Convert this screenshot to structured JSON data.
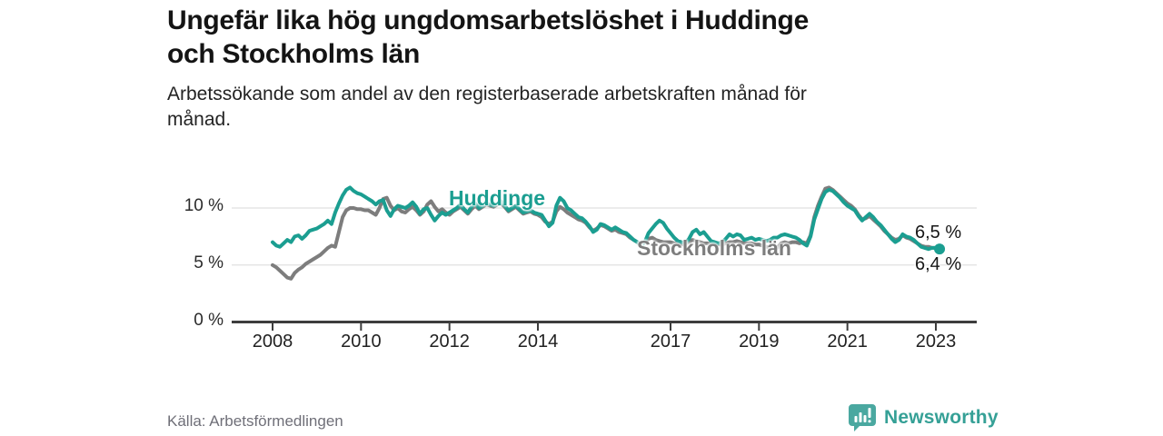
{
  "header": {
    "title": "Ungefär lika hög ungdomsarbetslöshet i Huddinge\noch Stockholms län",
    "subtitle": "Arbetssökande som andel av den registerbaserade arbetskraften månad för\nmånad."
  },
  "footer": {
    "source": "Källa: Arbetsförmedlingen",
    "brand": "Newsworthy"
  },
  "colors": {
    "huddinge": "#1b9e91",
    "stockholm": "#7d7d7d",
    "axis": "#3d3d3d",
    "gridline": "#e0e0e0",
    "brand_teal": "#4aa8a0"
  },
  "chart_data": {
    "type": "line",
    "title": "Ungefär lika hög ungdomsarbetslöshet i Huddinge och Stockholms län",
    "subtitle": "Arbetssökande som andel av den registerbaserade arbetskraften månad för månad.",
    "x_unit": "month",
    "x_start": "2008-01",
    "x_end": "2023-02",
    "xlim": [
      2007.1,
      2023.9
    ],
    "ylim": [
      0,
      12.5
    ],
    "grid": "horizontal",
    "legend_position": "inline-labels",
    "y_ticks": [
      {
        "value": 0,
        "label": "0 %"
      },
      {
        "value": 5,
        "label": "5 %"
      },
      {
        "value": 10,
        "label": "10 %"
      }
    ],
    "x_ticks": [
      {
        "year": 2008,
        "label": "2008"
      },
      {
        "year": 2010,
        "label": "2010"
      },
      {
        "year": 2012,
        "label": "2012"
      },
      {
        "year": 2014,
        "label": "2014"
      },
      {
        "year": 2017,
        "label": "2017"
      },
      {
        "year": 2019,
        "label": "2019"
      },
      {
        "year": 2021,
        "label": "2021"
      },
      {
        "year": 2023,
        "label": "2023"
      }
    ],
    "series": [
      {
        "name": "Huddinge",
        "color": "#1b9e91",
        "end_label": "6,4 %",
        "end_dot": true,
        "values": [
          7.0,
          6.7,
          6.6,
          6.9,
          7.2,
          7.0,
          7.5,
          7.6,
          7.3,
          7.6,
          8.0,
          8.1,
          8.2,
          8.4,
          8.6,
          8.9,
          8.6,
          9.6,
          10.4,
          11.1,
          11.6,
          11.8,
          11.5,
          11.3,
          11.2,
          11.0,
          10.8,
          10.6,
          10.3,
          10.6,
          10.7,
          9.8,
          9.3,
          9.9,
          10.2,
          10.1,
          10.0,
          10.2,
          10.5,
          10.1,
          9.5,
          9.9,
          10.0,
          9.4,
          8.9,
          9.3,
          9.6,
          9.4,
          9.6,
          9.8,
          10.0,
          10.3,
          9.9,
          9.6,
          10.1,
          10.4,
          10.0,
          10.2,
          10.4,
          10.3,
          10.2,
          10.4,
          10.6,
          10.2,
          9.8,
          10.0,
          10.2,
          9.9,
          9.6,
          9.7,
          9.8,
          9.6,
          9.5,
          9.4,
          8.9,
          8.4,
          8.7,
          10.2,
          10.9,
          10.6,
          10.0,
          9.8,
          9.5,
          9.2,
          9.1,
          8.8,
          8.4,
          7.9,
          8.1,
          8.6,
          8.5,
          8.3,
          8.1,
          8.3,
          8.1,
          7.9,
          7.8,
          7.5,
          7.2,
          7.0,
          6.7,
          7.0,
          7.8,
          8.2,
          8.6,
          8.9,
          8.7,
          8.2,
          7.8,
          7.4,
          7.1,
          7.0,
          6.9,
          7.3,
          7.9,
          8.1,
          7.7,
          7.9,
          7.5,
          7.1,
          7.0,
          6.9,
          7.0,
          7.3,
          7.7,
          7.5,
          7.7,
          7.6,
          7.2,
          7.3,
          7.4,
          7.2,
          7.3,
          7.2,
          7.1,
          7.2,
          7.4,
          7.4,
          7.6,
          7.7,
          7.6,
          7.5,
          7.4,
          7.2,
          6.9,
          6.7,
          7.5,
          9.0,
          9.9,
          10.8,
          11.4,
          11.6,
          11.5,
          11.2,
          10.9,
          10.5,
          10.2,
          10.0,
          9.8,
          9.3,
          8.9,
          9.2,
          9.5,
          9.2,
          8.8,
          8.5,
          8.1,
          7.7,
          7.3,
          7.0,
          7.2,
          7.7,
          7.5,
          7.4,
          7.2,
          6.9,
          6.6,
          6.5,
          6.4,
          6.5,
          6.5,
          6.4
        ]
      },
      {
        "name": "Stockholms län",
        "color": "#7d7d7d",
        "end_label": "6,5 %",
        "end_dot": false,
        "values": [
          5.0,
          4.8,
          4.5,
          4.2,
          3.9,
          3.8,
          4.3,
          4.6,
          4.8,
          5.1,
          5.3,
          5.5,
          5.7,
          5.9,
          6.2,
          6.5,
          6.7,
          6.6,
          7.9,
          9.2,
          9.8,
          10.0,
          10.0,
          9.9,
          9.9,
          9.8,
          9.8,
          9.6,
          9.4,
          10.0,
          10.8,
          10.9,
          10.2,
          9.8,
          10.0,
          9.7,
          9.6,
          9.9,
          10.1,
          9.8,
          9.4,
          9.7,
          10.3,
          10.6,
          10.1,
          9.7,
          9.9,
          9.6,
          9.4,
          9.7,
          9.9,
          10.1,
          9.8,
          9.5,
          9.9,
          10.2,
          9.9,
          10.1,
          10.3,
          10.2,
          10.1,
          10.3,
          10.4,
          10.1,
          9.7,
          9.9,
          10.1,
          9.8,
          9.5,
          9.6,
          9.7,
          9.5,
          9.4,
          9.2,
          8.8,
          8.6,
          8.8,
          9.7,
          10.1,
          9.9,
          9.6,
          9.4,
          9.2,
          9.0,
          8.9,
          8.7,
          8.3,
          8.0,
          8.2,
          8.5,
          8.4,
          8.2,
          8.0,
          8.1,
          7.9,
          7.8,
          7.7,
          7.4,
          7.2,
          7.0,
          6.8,
          7.0,
          7.3,
          7.4,
          7.2,
          7.1,
          7.0,
          7.0,
          7.0,
          6.9,
          6.9,
          6.8,
          6.8,
          7.0,
          7.2,
          7.1,
          7.0,
          6.9,
          6.9,
          6.8,
          6.8,
          6.8,
          6.8,
          6.9,
          7.0,
          7.0,
          7.1,
          7.0,
          6.9,
          6.9,
          6.9,
          6.8,
          6.8,
          6.7,
          6.6,
          6.5,
          6.4,
          6.5,
          6.9,
          7.0,
          6.9,
          7.0,
          7.0,
          6.9,
          7.0,
          6.9,
          7.6,
          9.2,
          10.2,
          11.0,
          11.7,
          11.8,
          11.6,
          11.3,
          11.0,
          10.7,
          10.4,
          10.2,
          9.9,
          9.4,
          9.0,
          9.1,
          9.3,
          9.0,
          8.7,
          8.4,
          8.0,
          7.7,
          7.4,
          7.2,
          7.3,
          7.6,
          7.4,
          7.3,
          7.1,
          6.9,
          6.7,
          6.6,
          6.6,
          6.5,
          6.5,
          6.5
        ]
      }
    ]
  }
}
